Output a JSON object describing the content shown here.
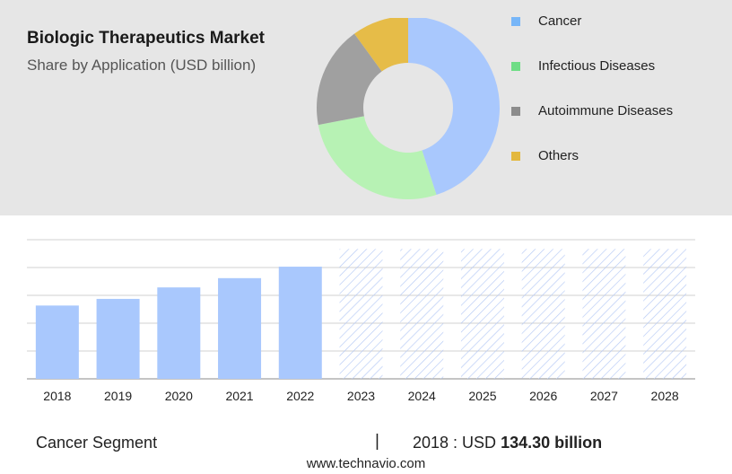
{
  "header": {
    "title": "Biologic Therapeutics Market",
    "subtitle": "Share by Application (USD billion)"
  },
  "colors": {
    "cancer": "#a9c8fd",
    "infectious": "#b7f2b4",
    "autoimmune": "#a0a0a0",
    "others": "#e6bc48",
    "forecast_hatch": "#b5c9f5",
    "panel": "#e6e6e6"
  },
  "chart_data": [
    {
      "type": "pie",
      "style": "donut",
      "labels": [
        "Cancer",
        "Infectious Diseases",
        "Autoimmune Diseases",
        "Others"
      ],
      "values": [
        45,
        27,
        18,
        10
      ],
      "legend_colors": [
        "#77b6f8",
        "#6fdd86",
        "#8c8c8c",
        "#e3b83e"
      ],
      "legend_placement": "right"
    },
    {
      "type": "bar",
      "categories": [
        "2018",
        "2019",
        "2020",
        "2021",
        "2022",
        "2023",
        "2024",
        "2025",
        "2026",
        "2027",
        "2028"
      ],
      "values": [
        134.3,
        146.5,
        167.5,
        184.5,
        205.5,
        238,
        238,
        238,
        238,
        238,
        238
      ],
      "forecast_from": "2023",
      "ylim": [
        0,
        250
      ],
      "grid": true
    }
  ],
  "footer": {
    "segment_label": "Cancer Segment",
    "separator": "|",
    "stat_prefix": "2018 : USD",
    "stat_value": "134.30 billion",
    "website": "www.technavio.com"
  }
}
